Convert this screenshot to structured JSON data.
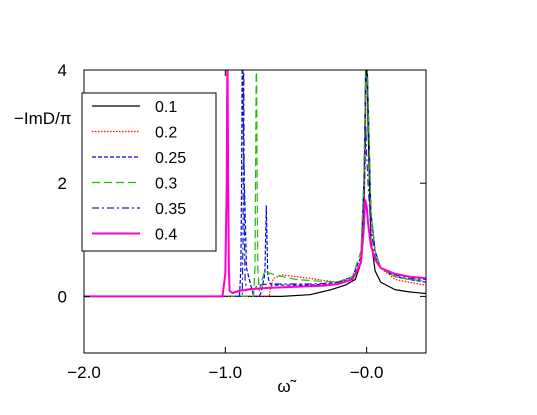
{
  "chart_data": {
    "type": "line",
    "title": "",
    "xlabel": "ω̃",
    "ylabel": "−ImD/π",
    "xlim": [
      -2.0,
      0.42
    ],
    "ylim": [
      -1.0,
      4.0
    ],
    "x_ticks": [
      -2.0,
      -1.0,
      -0.0
    ],
    "x_tick_labels": [
      "−2.0",
      "−1.0",
      "−0.0"
    ],
    "y_ticks": [
      0,
      2,
      4
    ],
    "y_tick_labels": [
      "0",
      "2",
      "4"
    ],
    "grid": false,
    "legend_position": "top-left",
    "series": [
      {
        "name": "0.1",
        "color": "#000000",
        "dash": "solid",
        "x": [
          -2.0,
          -0.6,
          -0.4,
          -0.25,
          -0.15,
          -0.08,
          -0.04,
          -0.02,
          -0.01,
          -0.005,
          0.0,
          0.01,
          0.03,
          0.06,
          0.1,
          0.2,
          0.3,
          0.42
        ],
        "y": [
          0.0,
          0.0,
          0.03,
          0.12,
          0.2,
          0.3,
          0.6,
          1.5,
          3.5,
          4.5,
          4.5,
          3.0,
          1.0,
          0.45,
          0.25,
          0.12,
          0.08,
          0.05
        ]
      },
      {
        "name": "0.2",
        "color": "#ff0000",
        "dash": "dotted",
        "x": [
          -2.0,
          -0.69,
          -0.68,
          -0.66,
          -0.6,
          -0.5,
          -0.4,
          -0.3,
          -0.2,
          -0.1,
          -0.05,
          -0.02,
          -0.01,
          0.0,
          0.01,
          0.03,
          0.06,
          0.1,
          0.2,
          0.3,
          0.42
        ],
        "y": [
          0.0,
          0.0,
          0.15,
          0.32,
          0.38,
          0.35,
          0.32,
          0.28,
          0.25,
          0.3,
          0.5,
          1.2,
          2.5,
          4.5,
          3.5,
          1.5,
          0.8,
          0.5,
          0.3,
          0.25,
          0.2
        ]
      },
      {
        "name": "0.25",
        "color": "#0000ff",
        "dash": "dashed",
        "x": [
          -2.0,
          -0.9,
          -0.89,
          -0.885,
          -0.88,
          -0.87,
          -0.85,
          -0.8,
          -0.77,
          -0.76,
          -0.75,
          -0.74,
          -0.72,
          -0.71,
          -0.7,
          -0.69,
          -0.67,
          -0.6,
          -0.5,
          -0.4,
          -0.3,
          -0.2,
          -0.1,
          -0.04,
          -0.02,
          -0.01,
          0.0,
          0.01,
          0.03,
          0.06,
          0.1,
          0.2,
          0.3,
          0.42
        ],
        "y": [
          0.0,
          0.0,
          0.5,
          2.0,
          4.5,
          2.5,
          0.5,
          0.0,
          0.0,
          0.0,
          0.05,
          0.15,
          0.4,
          1.6,
          0.4,
          0.25,
          0.2,
          0.2,
          0.2,
          0.2,
          0.22,
          0.25,
          0.35,
          0.7,
          2.0,
          3.0,
          4.5,
          3.5,
          1.5,
          0.8,
          0.5,
          0.35,
          0.3,
          0.25
        ]
      },
      {
        "name": "0.3",
        "color": "#22bb00",
        "dash": "longdash",
        "x": [
          -2.0,
          -0.8,
          -0.79,
          -0.785,
          -0.78,
          -0.775,
          -0.77,
          -0.76,
          -0.74,
          -0.72,
          -0.7,
          -0.65,
          -0.6,
          -0.5,
          -0.4,
          -0.3,
          -0.2,
          -0.1,
          -0.04,
          -0.02,
          -0.01,
          0.0,
          0.01,
          0.03,
          0.06,
          0.1,
          0.2,
          0.3,
          0.42
        ],
        "y": [
          0.0,
          0.0,
          0.5,
          2.5,
          4.5,
          2.0,
          0.5,
          0.1,
          0.3,
          0.45,
          0.42,
          0.38,
          0.35,
          0.3,
          0.28,
          0.26,
          0.26,
          0.35,
          0.8,
          2.0,
          3.5,
          4.5,
          3.5,
          1.5,
          0.8,
          0.5,
          0.35,
          0.3,
          0.28
        ]
      },
      {
        "name": "0.35",
        "color": "#2222aa",
        "dash": "dashdot",
        "x": [
          -2.0,
          -0.88,
          -0.875,
          -0.87,
          -0.865,
          -0.86,
          -0.85,
          -0.8,
          -0.75,
          -0.7,
          -0.6,
          -0.5,
          -0.4,
          -0.3,
          -0.2,
          -0.1,
          -0.04,
          -0.02,
          -0.01,
          -0.005,
          0.0,
          0.01,
          0.03,
          0.06,
          0.1,
          0.2,
          0.3,
          0.42
        ],
        "y": [
          0.0,
          0.0,
          1.0,
          4.5,
          1.0,
          0.3,
          0.12,
          0.15,
          0.2,
          0.22,
          0.22,
          0.22,
          0.22,
          0.23,
          0.25,
          0.32,
          0.6,
          1.5,
          2.5,
          3.0,
          2.5,
          2.0,
          1.2,
          0.7,
          0.5,
          0.38,
          0.32,
          0.3
        ]
      },
      {
        "name": "0.4",
        "color": "#ff00cc",
        "dash": "solid",
        "x": [
          -2.0,
          -1.02,
          -1.0,
          -0.99,
          -0.985,
          -0.98,
          -0.975,
          -0.97,
          -0.95,
          -0.9,
          -0.8,
          -0.7,
          -0.6,
          -0.5,
          -0.4,
          -0.3,
          -0.2,
          -0.1,
          -0.04,
          -0.02,
          -0.01,
          0.0,
          0.01,
          0.03,
          0.06,
          0.1,
          0.2,
          0.3,
          0.42
        ],
        "y": [
          0.0,
          0.0,
          0.4,
          2.0,
          4.5,
          2.0,
          0.5,
          0.1,
          0.06,
          0.1,
          0.13,
          0.15,
          0.16,
          0.17,
          0.18,
          0.19,
          0.22,
          0.3,
          0.6,
          1.2,
          1.7,
          1.6,
          1.3,
          0.9,
          0.65,
          0.5,
          0.4,
          0.35,
          0.32
        ]
      }
    ]
  }
}
